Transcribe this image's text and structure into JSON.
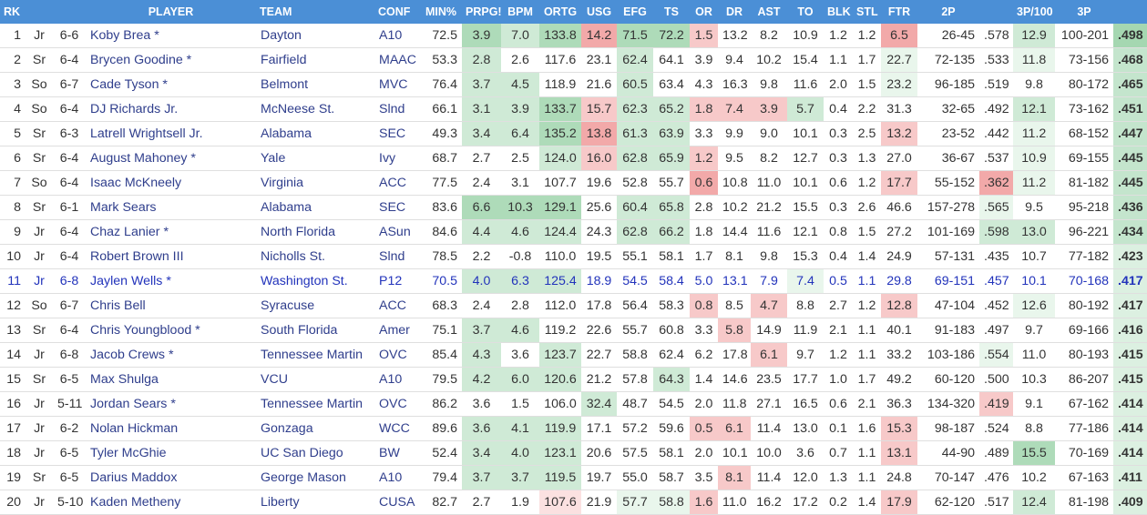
{
  "columns": [
    "RK",
    "",
    "",
    "PLAYER",
    "TEAM",
    "CONF",
    "MIN%",
    "PRPG!",
    "BPM",
    "ORTG",
    "USG",
    "EFG",
    "TS",
    "OR",
    "DR",
    "AST",
    "TO",
    "BLK",
    "STL",
    "FTR",
    "2P",
    "",
    "3P/100",
    "3P",
    ""
  ],
  "colors": {
    "header_bg": "#4b8fd6",
    "link": "#2f3e8c",
    "highlight_row_text": "#2233bb",
    "good": "#53b568",
    "bad": "#f07070"
  },
  "rows": [
    {
      "rk": "1",
      "cls": "Jr",
      "ht": "6-6",
      "player": "Koby Brea *",
      "team": "Dayton",
      "conf": "A10",
      "min": "72.5",
      "prpg": "3.9",
      "bpm": "7.0",
      "ortg": "133.8",
      "usg": "14.2",
      "efg": "71.5",
      "ts": "72.2",
      "or": "1.5",
      "dr": "13.2",
      "ast": "8.2",
      "to": "10.9",
      "blk": "1.2",
      "stl": "1.2",
      "ftr": "6.5",
      "p2": "26-45",
      "p2pct": ".578",
      "p3per100": "12.9",
      "p3": "100-201",
      "p3pct": ".498"
    },
    {
      "rk": "2",
      "cls": "Sr",
      "ht": "6-4",
      "player": "Brycen Goodine *",
      "team": "Fairfield",
      "conf": "MAAC",
      "min": "53.3",
      "prpg": "2.8",
      "bpm": "2.6",
      "ortg": "117.6",
      "usg": "23.1",
      "efg": "62.4",
      "ts": "64.1",
      "or": "3.9",
      "dr": "9.4",
      "ast": "10.2",
      "to": "15.4",
      "blk": "1.1",
      "stl": "1.7",
      "ftr": "22.7",
      "p2": "72-135",
      "p2pct": ".533",
      "p3per100": "11.8",
      "p3": "73-156",
      "p3pct": ".468"
    },
    {
      "rk": "3",
      "cls": "So",
      "ht": "6-7",
      "player": "Cade Tyson *",
      "team": "Belmont",
      "conf": "MVC",
      "min": "76.4",
      "prpg": "3.7",
      "bpm": "4.5",
      "ortg": "118.9",
      "usg": "21.6",
      "efg": "60.5",
      "ts": "63.4",
      "or": "4.3",
      "dr": "16.3",
      "ast": "9.8",
      "to": "11.6",
      "blk": "2.0",
      "stl": "1.5",
      "ftr": "23.2",
      "p2": "96-185",
      "p2pct": ".519",
      "p3per100": "9.8",
      "p3": "80-172",
      "p3pct": ".465"
    },
    {
      "rk": "4",
      "cls": "So",
      "ht": "6-4",
      "player": "DJ Richards Jr.",
      "team": "McNeese St.",
      "conf": "Slnd",
      "min": "66.1",
      "prpg": "3.1",
      "bpm": "3.9",
      "ortg": "133.7",
      "usg": "15.7",
      "efg": "62.3",
      "ts": "65.2",
      "or": "1.8",
      "dr": "7.4",
      "ast": "3.9",
      "to": "5.7",
      "blk": "0.4",
      "stl": "2.2",
      "ftr": "31.3",
      "p2": "32-65",
      "p2pct": ".492",
      "p3per100": "12.1",
      "p3": "73-162",
      "p3pct": ".451"
    },
    {
      "rk": "5",
      "cls": "Sr",
      "ht": "6-3",
      "player": "Latrell Wrightsell Jr.",
      "team": "Alabama",
      "conf": "SEC",
      "min": "49.3",
      "prpg": "3.4",
      "bpm": "6.4",
      "ortg": "135.2",
      "usg": "13.8",
      "efg": "61.3",
      "ts": "63.9",
      "or": "3.3",
      "dr": "9.9",
      "ast": "9.0",
      "to": "10.1",
      "blk": "0.3",
      "stl": "2.5",
      "ftr": "13.2",
      "p2": "23-52",
      "p2pct": ".442",
      "p3per100": "11.2",
      "p3": "68-152",
      "p3pct": ".447"
    },
    {
      "rk": "6",
      "cls": "Sr",
      "ht": "6-4",
      "player": "August Mahoney *",
      "team": "Yale",
      "conf": "Ivy",
      "min": "68.7",
      "prpg": "2.7",
      "bpm": "2.5",
      "ortg": "124.0",
      "usg": "16.0",
      "efg": "62.8",
      "ts": "65.9",
      "or": "1.2",
      "dr": "9.5",
      "ast": "8.2",
      "to": "12.7",
      "blk": "0.3",
      "stl": "1.3",
      "ftr": "27.0",
      "p2": "36-67",
      "p2pct": ".537",
      "p3per100": "10.9",
      "p3": "69-155",
      "p3pct": ".445"
    },
    {
      "rk": "7",
      "cls": "So",
      "ht": "6-4",
      "player": "Isaac McKneely",
      "team": "Virginia",
      "conf": "ACC",
      "min": "77.5",
      "prpg": "2.4",
      "bpm": "3.1",
      "ortg": "107.7",
      "usg": "19.6",
      "efg": "52.8",
      "ts": "55.7",
      "or": "0.6",
      "dr": "10.8",
      "ast": "11.0",
      "to": "10.1",
      "blk": "0.6",
      "stl": "1.2",
      "ftr": "17.7",
      "p2": "55-152",
      "p2pct": ".362",
      "p3per100": "11.2",
      "p3": "81-182",
      "p3pct": ".445"
    },
    {
      "rk": "8",
      "cls": "Sr",
      "ht": "6-1",
      "player": "Mark Sears",
      "team": "Alabama",
      "conf": "SEC",
      "min": "83.6",
      "prpg": "6.6",
      "bpm": "10.3",
      "ortg": "129.1",
      "usg": "25.6",
      "efg": "60.4",
      "ts": "65.8",
      "or": "2.8",
      "dr": "10.2",
      "ast": "21.2",
      "to": "15.5",
      "blk": "0.3",
      "stl": "2.6",
      "ftr": "46.6",
      "p2": "157-278",
      "p2pct": ".565",
      "p3per100": "9.5",
      "p3": "95-218",
      "p3pct": ".436"
    },
    {
      "rk": "9",
      "cls": "Jr",
      "ht": "6-4",
      "player": "Chaz Lanier *",
      "team": "North Florida",
      "conf": "ASun",
      "min": "84.6",
      "prpg": "4.4",
      "bpm": "4.6",
      "ortg": "124.4",
      "usg": "24.3",
      "efg": "62.8",
      "ts": "66.2",
      "or": "1.8",
      "dr": "14.4",
      "ast": "11.6",
      "to": "12.1",
      "blk": "0.8",
      "stl": "1.5",
      "ftr": "27.2",
      "p2": "101-169",
      "p2pct": ".598",
      "p3per100": "13.0",
      "p3": "96-221",
      "p3pct": ".434"
    },
    {
      "rk": "10",
      "cls": "Jr",
      "ht": "6-4",
      "player": "Robert Brown III",
      "team": "Nicholls St.",
      "conf": "Slnd",
      "min": "78.5",
      "prpg": "2.2",
      "bpm": "-0.8",
      "ortg": "110.0",
      "usg": "19.5",
      "efg": "55.1",
      "ts": "58.1",
      "or": "1.7",
      "dr": "8.1",
      "ast": "9.8",
      "to": "15.3",
      "blk": "0.4",
      "stl": "1.4",
      "ftr": "24.9",
      "p2": "57-131",
      "p2pct": ".435",
      "p3per100": "10.7",
      "p3": "77-182",
      "p3pct": ".423"
    },
    {
      "rk": "11",
      "cls": "Jr",
      "ht": "6-8",
      "player": "Jaylen Wells *",
      "team": "Washington St.",
      "conf": "P12",
      "min": "70.5",
      "prpg": "4.0",
      "bpm": "6.3",
      "ortg": "125.4",
      "usg": "18.9",
      "efg": "54.5",
      "ts": "58.4",
      "or": "5.0",
      "dr": "13.1",
      "ast": "7.9",
      "to": "7.4",
      "blk": "0.5",
      "stl": "1.1",
      "ftr": "29.8",
      "p2": "69-151",
      "p2pct": ".457",
      "p3per100": "10.1",
      "p3": "70-168",
      "p3pct": ".417"
    },
    {
      "rk": "12",
      "cls": "So",
      "ht": "6-7",
      "player": "Chris Bell",
      "team": "Syracuse",
      "conf": "ACC",
      "min": "68.3",
      "prpg": "2.4",
      "bpm": "2.8",
      "ortg": "112.0",
      "usg": "17.8",
      "efg": "56.4",
      "ts": "58.3",
      "or": "0.8",
      "dr": "8.5",
      "ast": "4.7",
      "to": "8.8",
      "blk": "2.7",
      "stl": "1.2",
      "ftr": "12.8",
      "p2": "47-104",
      "p2pct": ".452",
      "p3per100": "12.6",
      "p3": "80-192",
      "p3pct": ".417"
    },
    {
      "rk": "13",
      "cls": "Sr",
      "ht": "6-4",
      "player": "Chris Youngblood *",
      "team": "South Florida",
      "conf": "Amer",
      "min": "75.1",
      "prpg": "3.7",
      "bpm": "4.6",
      "ortg": "119.2",
      "usg": "22.6",
      "efg": "55.7",
      "ts": "60.8",
      "or": "3.3",
      "dr": "5.8",
      "ast": "14.9",
      "to": "11.9",
      "blk": "2.1",
      "stl": "1.1",
      "ftr": "40.1",
      "p2": "91-183",
      "p2pct": ".497",
      "p3per100": "9.7",
      "p3": "69-166",
      "p3pct": ".416"
    },
    {
      "rk": "14",
      "cls": "Jr",
      "ht": "6-8",
      "player": "Jacob Crews *",
      "team": "Tennessee Martin",
      "conf": "OVC",
      "min": "85.4",
      "prpg": "4.3",
      "bpm": "3.6",
      "ortg": "123.7",
      "usg": "22.7",
      "efg": "58.8",
      "ts": "62.4",
      "or": "6.2",
      "dr": "17.8",
      "ast": "6.1",
      "to": "9.7",
      "blk": "1.2",
      "stl": "1.1",
      "ftr": "33.2",
      "p2": "103-186",
      "p2pct": ".554",
      "p3per100": "11.0",
      "p3": "80-193",
      "p3pct": ".415"
    },
    {
      "rk": "15",
      "cls": "Sr",
      "ht": "6-5",
      "player": "Max Shulga",
      "team": "VCU",
      "conf": "A10",
      "min": "79.5",
      "prpg": "4.2",
      "bpm": "6.0",
      "ortg": "120.6",
      "usg": "21.2",
      "efg": "57.8",
      "ts": "64.3",
      "or": "1.4",
      "dr": "14.6",
      "ast": "23.5",
      "to": "17.7",
      "blk": "1.0",
      "stl": "1.7",
      "ftr": "49.2",
      "p2": "60-120",
      "p2pct": ".500",
      "p3per100": "10.3",
      "p3": "86-207",
      "p3pct": ".415"
    },
    {
      "rk": "16",
      "cls": "Jr",
      "ht": "5-11",
      "player": "Jordan Sears *",
      "team": "Tennessee Martin",
      "conf": "OVC",
      "min": "86.2",
      "prpg": "3.6",
      "bpm": "1.5",
      "ortg": "106.0",
      "usg": "32.4",
      "efg": "48.7",
      "ts": "54.5",
      "or": "2.0",
      "dr": "11.8",
      "ast": "27.1",
      "to": "16.5",
      "blk": "0.6",
      "stl": "2.1",
      "ftr": "36.3",
      "p2": "134-320",
      "p2pct": ".419",
      "p3per100": "9.1",
      "p3": "67-162",
      "p3pct": ".414"
    },
    {
      "rk": "17",
      "cls": "Jr",
      "ht": "6-2",
      "player": "Nolan Hickman",
      "team": "Gonzaga",
      "conf": "WCC",
      "min": "89.6",
      "prpg": "3.6",
      "bpm": "4.1",
      "ortg": "119.9",
      "usg": "17.1",
      "efg": "57.2",
      "ts": "59.6",
      "or": "0.5",
      "dr": "6.1",
      "ast": "11.4",
      "to": "13.0",
      "blk": "0.1",
      "stl": "1.6",
      "ftr": "15.3",
      "p2": "98-187",
      "p2pct": ".524",
      "p3per100": "8.8",
      "p3": "77-186",
      "p3pct": ".414"
    },
    {
      "rk": "18",
      "cls": "Jr",
      "ht": "6-5",
      "player": "Tyler McGhie",
      "team": "UC San Diego",
      "conf": "BW",
      "min": "52.4",
      "prpg": "3.4",
      "bpm": "4.0",
      "ortg": "123.1",
      "usg": "20.6",
      "efg": "57.5",
      "ts": "58.1",
      "or": "2.0",
      "dr": "10.1",
      "ast": "10.0",
      "to": "3.6",
      "blk": "0.7",
      "stl": "1.1",
      "ftr": "13.1",
      "p2": "44-90",
      "p2pct": ".489",
      "p3per100": "15.5",
      "p3": "70-169",
      "p3pct": ".414"
    },
    {
      "rk": "19",
      "cls": "Sr",
      "ht": "6-5",
      "player": "Darius Maddox",
      "team": "George Mason",
      "conf": "A10",
      "min": "79.4",
      "prpg": "3.7",
      "bpm": "3.7",
      "ortg": "119.5",
      "usg": "19.7",
      "efg": "55.0",
      "ts": "58.7",
      "or": "3.5",
      "dr": "8.1",
      "ast": "11.4",
      "to": "12.0",
      "blk": "1.3",
      "stl": "1.1",
      "ftr": "24.8",
      "p2": "70-147",
      "p2pct": ".476",
      "p3per100": "10.2",
      "p3": "67-163",
      "p3pct": ".411"
    },
    {
      "rk": "20",
      "cls": "Jr",
      "ht": "5-10",
      "player": "Kaden Metheny",
      "team": "Liberty",
      "conf": "CUSA",
      "min": "82.7",
      "prpg": "2.7",
      "bpm": "1.9",
      "ortg": "107.6",
      "usg": "21.9",
      "efg": "57.7",
      "ts": "58.8",
      "or": "1.6",
      "dr": "11.0",
      "ast": "16.2",
      "to": "17.2",
      "blk": "0.2",
      "stl": "1.4",
      "ftr": "17.9",
      "p2": "62-120",
      "p2pct": ".517",
      "p3per100": "12.4",
      "p3": "81-198",
      "p3pct": ".409"
    }
  ],
  "shading": [
    {
      "prpg": "g2",
      "bpm": "g1",
      "ortg": "g2",
      "usg": "r2",
      "efg": "g2",
      "ts": "g2",
      "or": "r1",
      "ftr": "r2",
      "p3per100": "g1",
      "p3pct": "g2"
    },
    {
      "prpg": "g1",
      "efg": "g1",
      "ftr": "g0",
      "p3per100": "g0",
      "p3pct": "g1"
    },
    {
      "prpg": "g1",
      "bpm": "g1",
      "efg": "g1",
      "ftr": "g0",
      "p3pct": "g1"
    },
    {
      "prpg": "g1",
      "bpm": "g1",
      "ortg": "g2",
      "usg": "r1",
      "efg": "g1",
      "ts": "g1",
      "or": "r1",
      "dr": "r1",
      "ast": "r1",
      "to": "g1",
      "p3per100": "g1",
      "p3pct": "g1"
    },
    {
      "prpg": "g1",
      "bpm": "g1",
      "ortg": "g2",
      "usg": "r2",
      "efg": "g1",
      "ts": "g1",
      "ftr": "r1",
      "p3per100": "g0",
      "p3pct": "g1"
    },
    {
      "ortg": "g1",
      "usg": "r1",
      "efg": "g1",
      "ts": "g1",
      "or": "r1",
      "p3per100": "g0",
      "p3pct": "g1"
    },
    {
      "or": "r2",
      "ftr": "r1",
      "p2pct": "r2",
      "p3per100": "g0",
      "p3pct": "g1"
    },
    {
      "prpg": "g2",
      "bpm": "g2",
      "ortg": "g2",
      "efg": "g1",
      "ts": "g1",
      "p2pct": "g0",
      "p3pct": "g1"
    },
    {
      "prpg": "g1",
      "bpm": "g1",
      "ortg": "g1",
      "efg": "g1",
      "ts": "g1",
      "p2pct": "g1",
      "p3per100": "g1",
      "p3pct": "g1"
    },
    {
      "p3pct": "g0"
    },
    {
      "prpg": "g1",
      "bpm": "g1",
      "ortg": "g1",
      "to": "g0",
      "p3pct": "g0"
    },
    {
      "or": "r1",
      "ast": "r1",
      "ftr": "r1",
      "p3per100": "g0",
      "p3pct": "g0"
    },
    {
      "prpg": "g1",
      "bpm": "g1",
      "dr": "r1",
      "p3pct": "g0"
    },
    {
      "prpg": "g1",
      "ortg": "g1",
      "ast": "r1",
      "p2pct": "g0",
      "p3pct": "g0"
    },
    {
      "prpg": "g1",
      "bpm": "g1",
      "ortg": "g1",
      "ts": "g1",
      "p3pct": "g0"
    },
    {
      "usg": "g1",
      "p2pct": "r1",
      "p3pct": "g0"
    },
    {
      "prpg": "g1",
      "bpm": "g1",
      "ortg": "g1",
      "or": "r1",
      "dr": "r1",
      "ftr": "r1",
      "p3pct": "g0"
    },
    {
      "prpg": "g1",
      "bpm": "g1",
      "ortg": "g1",
      "ftr": "r1",
      "p3per100": "g2",
      "p3pct": "g0"
    },
    {
      "prpg": "g1",
      "bpm": "g1",
      "ortg": "g1",
      "dr": "r1",
      "p3pct": "g0"
    },
    {
      "ortg": "r0",
      "efg": "g0",
      "ts": "g0",
      "or": "r1",
      "ftr": "r1",
      "p3per100": "g1",
      "p3pct": "g0"
    }
  ],
  "highlighted_row": "11"
}
